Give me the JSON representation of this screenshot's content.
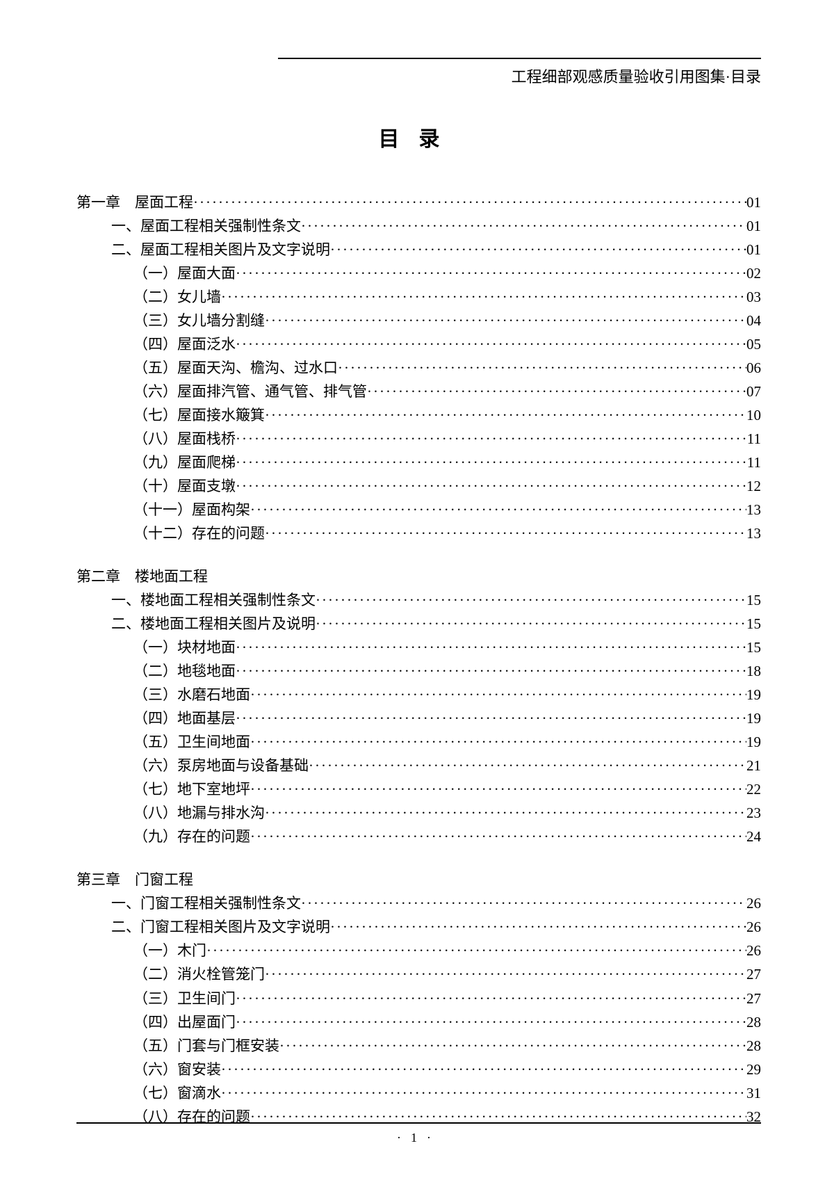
{
  "header": "工程细部观感质量验收引用图集·目录",
  "title": "目录",
  "footer": "·1·",
  "toc": [
    {
      "level": "chapter",
      "label": "第一章　屋面工程",
      "page": "01"
    },
    {
      "level": "section",
      "label": "一、屋面工程相关强制性条文",
      "page": "01"
    },
    {
      "level": "section",
      "label": "二、屋面工程相关图片及文字说明",
      "page": "01"
    },
    {
      "level": "sub",
      "label": "（一）屋面大面",
      "page": "02"
    },
    {
      "level": "sub",
      "label": "（二）女儿墙",
      "page": "03"
    },
    {
      "level": "sub",
      "label": "（三）女儿墙分割缝",
      "page": "04"
    },
    {
      "level": "sub",
      "label": "（四）屋面泛水",
      "page": "05"
    },
    {
      "level": "sub",
      "label": "（五）屋面天沟、檐沟、过水口",
      "page": "06"
    },
    {
      "level": "sub",
      "label": "（六）屋面排汽管、通气管、排气管",
      "page": "07"
    },
    {
      "level": "sub",
      "label": "（七）屋面接水簸箕",
      "page": "10"
    },
    {
      "level": "sub",
      "label": "（八）屋面栈桥",
      "page": "11"
    },
    {
      "level": "sub",
      "label": "（九）屋面爬梯",
      "page": "11"
    },
    {
      "level": "sub",
      "label": "（十）屋面支墩",
      "page": "12"
    },
    {
      "level": "sub",
      "label": "（十一）屋面构架",
      "page": "13"
    },
    {
      "level": "sub",
      "label": "（十二）存在的问题",
      "page": "13"
    },
    {
      "level": "gap"
    },
    {
      "level": "chapter",
      "label": "第二章　楼地面工程",
      "nopage": true
    },
    {
      "level": "section",
      "label": "一、楼地面工程相关强制性条文",
      "page": "15"
    },
    {
      "level": "section",
      "label": "二、楼地面工程相关图片及说明",
      "page": "15"
    },
    {
      "level": "sub",
      "label": "（一）块材地面",
      "page": "15"
    },
    {
      "level": "sub",
      "label": "（二）地毯地面",
      "page": "18"
    },
    {
      "level": "sub",
      "label": "（三）水磨石地面",
      "page": "19"
    },
    {
      "level": "sub",
      "label": "（四）地面基层",
      "page": "19"
    },
    {
      "level": "sub",
      "label": "（五）卫生间地面",
      "page": "19"
    },
    {
      "level": "sub",
      "label": "（六）泵房地面与设备基础",
      "page": "21"
    },
    {
      "level": "sub",
      "label": "（七）地下室地坪",
      "page": "22"
    },
    {
      "level": "sub",
      "label": "（八）地漏与排水沟",
      "page": "23"
    },
    {
      "level": "sub",
      "label": "（九）存在的问题",
      "page": "24"
    },
    {
      "level": "gap"
    },
    {
      "level": "chapter",
      "label": "第三章　门窗工程",
      "nopage": true
    },
    {
      "level": "section",
      "label": "一、门窗工程相关强制性条文",
      "page": "26"
    },
    {
      "level": "section",
      "label": "二、门窗工程相关图片及文字说明",
      "page": "26"
    },
    {
      "level": "sub",
      "label": "（一）木门",
      "page": "26"
    },
    {
      "level": "sub",
      "label": "（二）消火栓管笼门",
      "page": "27"
    },
    {
      "level": "sub",
      "label": "（三）卫生间门",
      "page": "27"
    },
    {
      "level": "sub",
      "label": "（四）出屋面门",
      "page": "28"
    },
    {
      "level": "sub",
      "label": "（五）门套与门框安装",
      "page": "28"
    },
    {
      "level": "sub",
      "label": "（六）窗安装",
      "page": "29"
    },
    {
      "level": "sub",
      "label": "（七）窗滴水",
      "page": "31"
    },
    {
      "level": "sub",
      "label": "（八）存在的问题",
      "page": "32"
    }
  ]
}
